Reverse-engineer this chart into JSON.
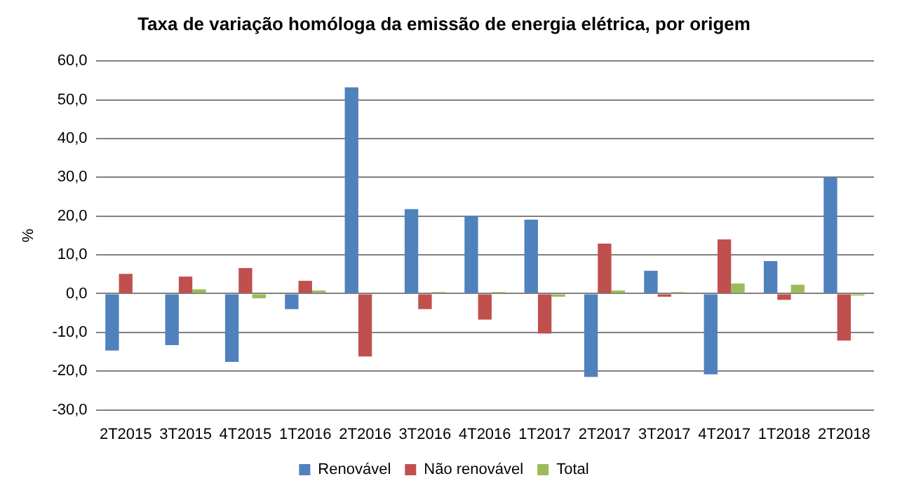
{
  "chart_data": {
    "type": "bar",
    "title": "Taxa de variação homóloga da emissão de energia elétrica, por origem",
    "ylabel": "%",
    "categories": [
      "2T2015",
      "3T2015",
      "4T2015",
      "1T2016",
      "2T2016",
      "3T2016",
      "4T2016",
      "1T2017",
      "2T2017",
      "3T2017",
      "4T2017",
      "1T2018",
      "2T2018"
    ],
    "series": [
      {
        "name": "Renovável",
        "color": "#4f81bd",
        "values": [
          -14.7,
          -13.3,
          -17.6,
          -4.0,
          53.2,
          21.8,
          20.0,
          19.1,
          -21.5,
          5.9,
          -20.8,
          8.4,
          30.0
        ]
      },
      {
        "name": "Não renovável",
        "color": "#c0504d",
        "values": [
          5.1,
          4.4,
          6.6,
          3.3,
          -16.2,
          -4.0,
          -6.7,
          -10.3,
          12.9,
          -0.8,
          14.0,
          -1.6,
          -12.1
        ]
      },
      {
        "name": "Total",
        "color": "#9bbb59",
        "values": [
          0.0,
          1.1,
          -1.2,
          0.8,
          0.0,
          0.4,
          0.4,
          -0.8,
          0.8,
          0.4,
          2.6,
          2.3,
          -0.5
        ]
      }
    ],
    "ylim": [
      -30,
      60
    ],
    "yticks": [
      {
        "value": -30,
        "label": "-30,0"
      },
      {
        "value": -20,
        "label": "-20,0"
      },
      {
        "value": -10,
        "label": "-10,0"
      },
      {
        "value": 0,
        "label": "0,0"
      },
      {
        "value": 10,
        "label": "10,0"
      },
      {
        "value": 20,
        "label": "20,0"
      },
      {
        "value": 30,
        "label": "30,0"
      },
      {
        "value": 40,
        "label": "40,0"
      },
      {
        "value": 50,
        "label": "50,0"
      },
      {
        "value": 60,
        "label": "60,0"
      }
    ],
    "grid": "y",
    "legend": "bottom"
  }
}
